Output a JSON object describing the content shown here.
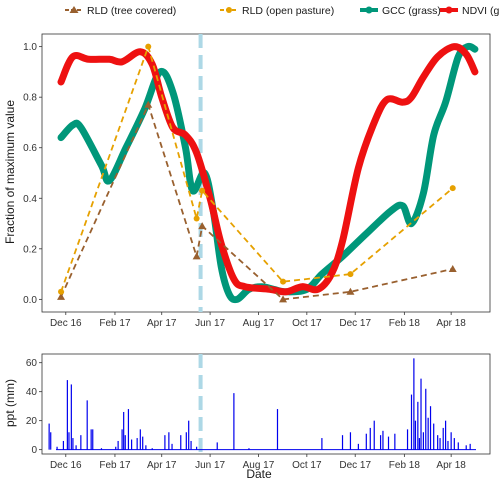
{
  "legend": {
    "items": [
      {
        "label": "RLD (tree covered)",
        "color": "#99602f",
        "marker": "triangle",
        "dashed": true
      },
      {
        "label": "RLD (open pasture)",
        "color": "#e6a100",
        "marker": "circle",
        "dashed": true
      },
      {
        "label": "GCC (grass)",
        "color": "#00977a",
        "marker": "circle",
        "dashed": false
      },
      {
        "label": "NDVI (grass)",
        "color": "#ee1111",
        "marker": "circle",
        "dashed": false
      }
    ]
  },
  "xaxis": {
    "title": "Date",
    "ticks": [
      {
        "label": "Dec 16",
        "date": "2016-12-01"
      },
      {
        "label": "Feb 17",
        "date": "2017-02-01"
      },
      {
        "label": "Apr 17",
        "date": "2017-04-01"
      },
      {
        "label": "Jun 17",
        "date": "2017-06-01"
      },
      {
        "label": "Aug 17",
        "date": "2017-08-01"
      },
      {
        "label": "Oct 17",
        "date": "2017-10-01"
      },
      {
        "label": "Dec 17",
        "date": "2017-12-01"
      },
      {
        "label": "Feb 18",
        "date": "2018-02-01"
      },
      {
        "label": "Apr 18",
        "date": "2018-04-01"
      }
    ]
  },
  "event_line": {
    "date": "2017-05-20",
    "color": "#add8e6"
  },
  "chart_data": [
    {
      "type": "line",
      "ylabel": "Fraction of maximum value",
      "ylim": [
        -0.05,
        1.05
      ],
      "y_ticks": [
        "0.0",
        "0.2",
        "0.4",
        "0.6",
        "0.8",
        "1.0"
      ],
      "y_tick_values": [
        0,
        0.2,
        0.4,
        0.6,
        0.8,
        1.0
      ],
      "xlim": [
        "2016-11-01",
        "2018-05-20"
      ],
      "series": [
        {
          "name": "RLD (tree covered)",
          "points": [
            [
              "2016-11-25",
              0.01
            ],
            [
              "2017-03-15",
              0.77
            ],
            [
              "2017-05-15",
              0.17
            ],
            [
              "2017-05-22",
              0.29
            ],
            [
              "2017-09-01",
              0.0
            ],
            [
              "2017-11-25",
              0.03
            ],
            [
              "2018-04-03",
              0.12
            ]
          ]
        },
        {
          "name": "RLD (open pasture)",
          "points": [
            [
              "2016-11-25",
              0.03
            ],
            [
              "2017-03-15",
              1.0
            ],
            [
              "2017-05-15",
              0.32
            ],
            [
              "2017-05-22",
              0.43
            ],
            [
              "2017-09-01",
              0.07
            ],
            [
              "2017-11-25",
              0.1
            ],
            [
              "2018-04-03",
              0.44
            ]
          ]
        },
        {
          "name": "GCC (grass)",
          "points": [
            [
              "2016-11-25",
              0.64
            ],
            [
              "2016-12-10",
              0.69
            ],
            [
              "2016-12-20",
              0.68
            ],
            [
              "2017-01-15",
              0.53
            ],
            [
              "2017-01-25",
              0.47
            ],
            [
              "2017-02-15",
              0.6
            ],
            [
              "2017-03-10",
              0.75
            ],
            [
              "2017-03-30",
              0.9
            ],
            [
              "2017-04-15",
              0.82
            ],
            [
              "2017-05-01",
              0.6
            ],
            [
              "2017-05-10",
              0.43
            ],
            [
              "2017-05-25",
              0.5
            ],
            [
              "2017-06-05",
              0.35
            ],
            [
              "2017-06-15",
              0.13
            ],
            [
              "2017-06-25",
              0.02
            ],
            [
              "2017-07-05",
              0.0
            ],
            [
              "2017-07-20",
              0.04
            ],
            [
              "2017-08-05",
              0.05
            ],
            [
              "2017-08-20",
              0.04
            ],
            [
              "2017-09-05",
              0.03
            ],
            [
              "2017-10-01",
              0.04
            ],
            [
              "2017-10-20",
              0.1
            ],
            [
              "2017-11-15",
              0.17
            ],
            [
              "2017-12-15",
              0.26
            ],
            [
              "2018-01-15",
              0.35
            ],
            [
              "2018-01-30",
              0.37
            ],
            [
              "2018-02-10",
              0.3
            ],
            [
              "2018-02-25",
              0.42
            ],
            [
              "2018-03-10",
              0.65
            ],
            [
              "2018-03-25",
              0.78
            ],
            [
              "2018-04-10",
              0.96
            ],
            [
              "2018-04-22",
              1.0
            ],
            [
              "2018-05-01",
              0.99
            ]
          ]
        },
        {
          "name": "NDVI (grass)",
          "points": [
            [
              "2016-11-25",
              0.86
            ],
            [
              "2016-12-10",
              0.96
            ],
            [
              "2016-12-30",
              0.95
            ],
            [
              "2017-01-25",
              0.95
            ],
            [
              "2017-02-10",
              0.94
            ],
            [
              "2017-03-05",
              0.98
            ],
            [
              "2017-03-20",
              0.93
            ],
            [
              "2017-04-01",
              0.8
            ],
            [
              "2017-04-15",
              0.68
            ],
            [
              "2017-05-01",
              0.65
            ],
            [
              "2017-05-15",
              0.58
            ],
            [
              "2017-06-01",
              0.4
            ],
            [
              "2017-06-15",
              0.22
            ],
            [
              "2017-07-01",
              0.08
            ],
            [
              "2017-07-15",
              0.05
            ],
            [
              "2017-08-15",
              0.04
            ],
            [
              "2017-09-05",
              0.03
            ],
            [
              "2017-09-25",
              0.05
            ],
            [
              "2017-10-15",
              0.04
            ],
            [
              "2017-11-01",
              0.1
            ],
            [
              "2017-11-15",
              0.23
            ],
            [
              "2017-12-05",
              0.52
            ],
            [
              "2017-12-25",
              0.7
            ],
            [
              "2018-01-10",
              0.79
            ],
            [
              "2018-01-30",
              0.78
            ],
            [
              "2018-02-10",
              0.8
            ],
            [
              "2018-02-25",
              0.88
            ],
            [
              "2018-03-15",
              0.96
            ],
            [
              "2018-04-05",
              1.0
            ],
            [
              "2018-04-20",
              0.97
            ],
            [
              "2018-05-01",
              0.9
            ]
          ]
        }
      ]
    },
    {
      "type": "bar",
      "ylabel": "ppt (mm)",
      "ylim": [
        -3,
        66
      ],
      "y_ticks": [
        "0",
        "20",
        "40",
        "60"
      ],
      "y_tick_values": [
        0,
        20,
        40,
        60
      ],
      "xlim": [
        "2016-11-01",
        "2018-05-20"
      ],
      "color": "#0000ee",
      "series": [
        {
          "name": "ppt",
          "points": [
            [
              "2016-11-10",
              18
            ],
            [
              "2016-11-12",
              12
            ],
            [
              "2016-11-20",
              2
            ],
            [
              "2016-11-28",
              6
            ],
            [
              "2016-12-03",
              48
            ],
            [
              "2016-12-05",
              12
            ],
            [
              "2016-12-08",
              45
            ],
            [
              "2016-12-10",
              8
            ],
            [
              "2016-12-14",
              3
            ],
            [
              "2016-12-20",
              10
            ],
            [
              "2016-12-28",
              34
            ],
            [
              "2017-01-02",
              14
            ],
            [
              "2017-01-04",
              14
            ],
            [
              "2017-01-15",
              1
            ],
            [
              "2017-02-02",
              2
            ],
            [
              "2017-02-05",
              6
            ],
            [
              "2017-02-10",
              14
            ],
            [
              "2017-02-12",
              26
            ],
            [
              "2017-02-14",
              10
            ],
            [
              "2017-02-18",
              28
            ],
            [
              "2017-02-22",
              7
            ],
            [
              "2017-03-01",
              8
            ],
            [
              "2017-03-05",
              14
            ],
            [
              "2017-03-08",
              9
            ],
            [
              "2017-03-12",
              3
            ],
            [
              "2017-03-20",
              1
            ],
            [
              "2017-04-05",
              10
            ],
            [
              "2017-04-10",
              12
            ],
            [
              "2017-04-14",
              4
            ],
            [
              "2017-04-25",
              10
            ],
            [
              "2017-05-02",
              12
            ],
            [
              "2017-05-05",
              20
            ],
            [
              "2017-05-08",
              6
            ],
            [
              "2017-05-15",
              2
            ],
            [
              "2017-06-10",
              5
            ],
            [
              "2017-07-01",
              39
            ],
            [
              "2017-07-20",
              1
            ],
            [
              "2017-08-25",
              28
            ],
            [
              "2017-10-20",
              8
            ],
            [
              "2017-11-15",
              10
            ],
            [
              "2017-11-25",
              12
            ],
            [
              "2017-12-05",
              4
            ],
            [
              "2017-12-15",
              11
            ],
            [
              "2017-12-20",
              15
            ],
            [
              "2017-12-25",
              20
            ],
            [
              "2018-01-02",
              10
            ],
            [
              "2018-01-05",
              13
            ],
            [
              "2018-01-12",
              9
            ],
            [
              "2018-01-20",
              11
            ],
            [
              "2018-02-05",
              14
            ],
            [
              "2018-02-10",
              38
            ],
            [
              "2018-02-13",
              63
            ],
            [
              "2018-02-15",
              20
            ],
            [
              "2018-02-18",
              33
            ],
            [
              "2018-02-20",
              8
            ],
            [
              "2018-02-22",
              49
            ],
            [
              "2018-02-25",
              12
            ],
            [
              "2018-02-28",
              42
            ],
            [
              "2018-03-03",
              22
            ],
            [
              "2018-03-06",
              30
            ],
            [
              "2018-03-10",
              18
            ],
            [
              "2018-03-15",
              10
            ],
            [
              "2018-03-18",
              8
            ],
            [
              "2018-03-22",
              15
            ],
            [
              "2018-03-25",
              20
            ],
            [
              "2018-03-28",
              6
            ],
            [
              "2018-04-01",
              12
            ],
            [
              "2018-04-05",
              8
            ],
            [
              "2018-04-10",
              5
            ],
            [
              "2018-04-20",
              3
            ],
            [
              "2018-04-25",
              4
            ]
          ]
        }
      ]
    }
  ]
}
